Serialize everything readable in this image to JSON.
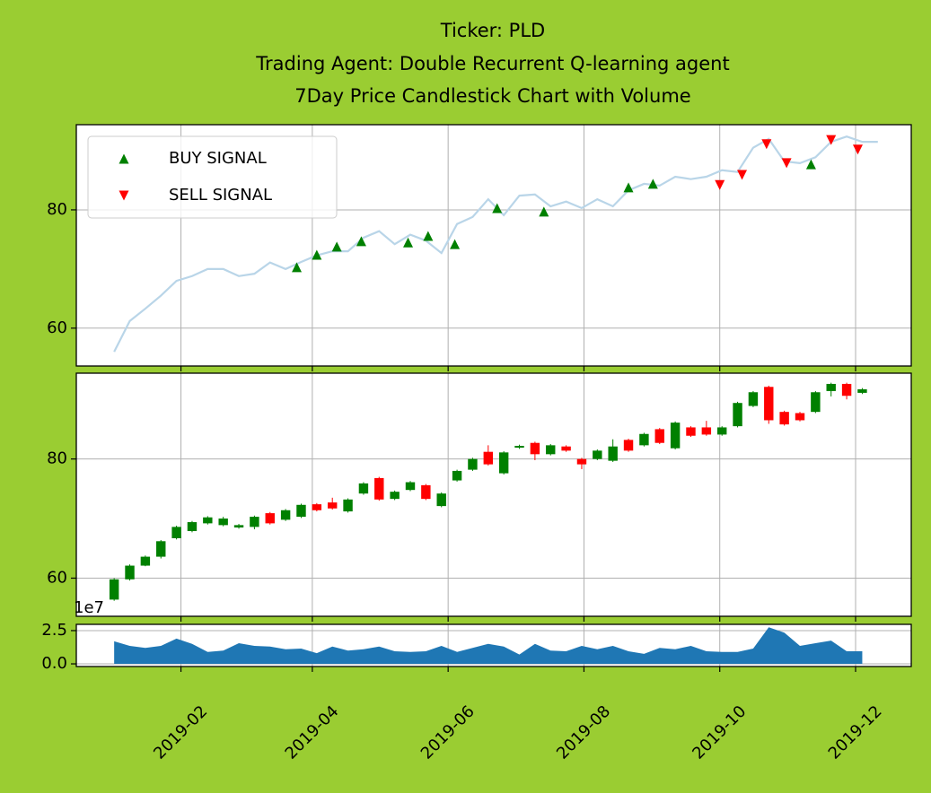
{
  "chart_data": [
    {
      "type": "line",
      "title": [
        "Ticker: PLD",
        "Trading Agent: Double Recurrent Q-learning agent",
        "7Day Price Candlestick Chart with Volume"
      ],
      "x": [
        "2019-01-02",
        "2019-01-09",
        "2019-01-16",
        "2019-01-23",
        "2019-01-30",
        "2019-02-06",
        "2019-02-13",
        "2019-02-20",
        "2019-02-27",
        "2019-03-06",
        "2019-03-13",
        "2019-03-20",
        "2019-03-27",
        "2019-04-03",
        "2019-04-10",
        "2019-04-17",
        "2019-04-24",
        "2019-05-01",
        "2019-05-08",
        "2019-05-15",
        "2019-05-22",
        "2019-05-29",
        "2019-06-05",
        "2019-06-12",
        "2019-06-19",
        "2019-06-26",
        "2019-07-03",
        "2019-07-10",
        "2019-07-17",
        "2019-07-24",
        "2019-07-31",
        "2019-08-07",
        "2019-08-14",
        "2019-08-21",
        "2019-08-28",
        "2019-09-04",
        "2019-09-11",
        "2019-09-18",
        "2019-09-25",
        "2019-10-02",
        "2019-10-09",
        "2019-10-16",
        "2019-10-23",
        "2019-10-30",
        "2019-11-06",
        "2019-11-13",
        "2019-11-20",
        "2019-11-27",
        "2019-12-04",
        "2019-12-11"
      ],
      "values": [
        56.0,
        61.2,
        63.3,
        65.5,
        68.0,
        68.8,
        70.0,
        70.0,
        68.8,
        69.2,
        71.1,
        70.0,
        71.2,
        72.3,
        73.0,
        73.0,
        75.3,
        76.4,
        74.2,
        75.8,
        74.8,
        72.7,
        77.6,
        78.8,
        81.8,
        79.1,
        82.4,
        82.6,
        80.6,
        81.4,
        80.3,
        81.8,
        80.6,
        83.3,
        84.4,
        84.1,
        85.6,
        85.2,
        85.6,
        86.7,
        86.4,
        90.5,
        92.0,
        88.2,
        87.9,
        88.9,
        91.5,
        92.4,
        91.5,
        91.5
      ],
      "color": "#b9d5e8",
      "signals": [
        {
          "name": "BUY SIGNAL",
          "color": "green",
          "marker": "up",
          "x": [
            "2019-03-25",
            "2019-04-03",
            "2019-04-12",
            "2019-04-23",
            "2019-05-14",
            "2019-05-23",
            "2019-06-04",
            "2019-06-23",
            "2019-07-14",
            "2019-08-21",
            "2019-09-01",
            "2019-11-11"
          ],
          "values": [
            70.3,
            72.4,
            73.8,
            74.7,
            74.5,
            75.6,
            74.2,
            80.3,
            79.7,
            83.8,
            84.4,
            87.7
          ]
        },
        {
          "name": "SELL SIGNAL",
          "color": "red",
          "marker": "down",
          "x": [
            "2019-10-01",
            "2019-10-11",
            "2019-10-22",
            "2019-10-31",
            "2019-11-20",
            "2019-12-02"
          ],
          "values": [
            84.2,
            85.9,
            91.1,
            87.9,
            91.8,
            90.2
          ]
        }
      ],
      "legend": "upper left",
      "xlim": [
        "2018-12-16",
        "2019-12-26"
      ],
      "xticks": [
        {
          "value": "2019-02-01",
          "label": "2019-02"
        },
        {
          "value": "2019-04-01",
          "label": "2019-04"
        },
        {
          "value": "2019-06-01",
          "label": "2019-06"
        },
        {
          "value": "2019-08-01",
          "label": "2019-08"
        },
        {
          "value": "2019-10-01",
          "label": "2019-10"
        },
        {
          "value": "2019-12-01",
          "label": "2019-12"
        }
      ],
      "ylim": [
        53.6,
        94.4
      ],
      "yticks": [
        60,
        80
      ],
      "grid": true
    },
    {
      "type": "candlestick",
      "x": [
        "2019-01-02",
        "2019-01-09",
        "2019-01-16",
        "2019-01-23",
        "2019-01-30",
        "2019-02-06",
        "2019-02-13",
        "2019-02-20",
        "2019-02-27",
        "2019-03-06",
        "2019-03-13",
        "2019-03-20",
        "2019-03-27",
        "2019-04-03",
        "2019-04-10",
        "2019-04-17",
        "2019-04-24",
        "2019-05-01",
        "2019-05-08",
        "2019-05-15",
        "2019-05-22",
        "2019-05-29",
        "2019-06-05",
        "2019-06-12",
        "2019-06-19",
        "2019-06-26",
        "2019-07-03",
        "2019-07-10",
        "2019-07-17",
        "2019-07-24",
        "2019-07-31",
        "2019-08-07",
        "2019-08-14",
        "2019-08-21",
        "2019-08-28",
        "2019-09-04",
        "2019-09-11",
        "2019-09-18",
        "2019-09-25",
        "2019-10-02",
        "2019-10-09",
        "2019-10-16",
        "2019-10-23",
        "2019-10-30",
        "2019-11-06",
        "2019-11-13",
        "2019-11-20",
        "2019-11-27",
        "2019-12-04"
      ],
      "open": [
        56.4,
        59.8,
        62.1,
        63.6,
        66.7,
        67.9,
        69.2,
        68.9,
        68.5,
        68.6,
        70.9,
        69.8,
        70.3,
        72.4,
        72.7,
        71.2,
        74.2,
        76.8,
        73.3,
        74.8,
        75.6,
        72.1,
        76.4,
        78.2,
        81.2,
        77.6,
        81.9,
        82.7,
        80.8,
        82.1,
        80.0,
        80.0,
        79.7,
        83.2,
        82.3,
        85.0,
        81.8,
        85.3,
        85.3,
        84.1,
        85.5,
        88.9,
        92.1,
        87.9,
        87.7,
        87.9,
        91.4,
        92.6,
        91.1
      ],
      "high": [
        60.0,
        62.3,
        63.8,
        66.4,
        68.8,
        69.6,
        70.4,
        70.3,
        69.1,
        70.5,
        71.1,
        71.6,
        72.5,
        72.6,
        73.5,
        73.4,
        76.1,
        77.0,
        74.7,
        76.3,
        75.8,
        74.4,
        78.2,
        80.2,
        82.3,
        81.3,
        82.4,
        82.9,
        82.5,
        82.3,
        80.2,
        81.6,
        83.3,
        83.4,
        84.4,
        85.2,
        86.3,
        85.5,
        86.4,
        85.5,
        89.6,
        91.4,
        92.3,
        88.1,
        87.9,
        91.4,
        92.8,
        92.8,
        91.9
      ],
      "low": [
        56.2,
        59.6,
        62.0,
        63.3,
        66.5,
        67.7,
        69.0,
        68.7,
        68.3,
        68.2,
        69.0,
        69.6,
        70.1,
        71.2,
        71.5,
        71.0,
        74.0,
        73.0,
        73.1,
        74.6,
        73.1,
        71.9,
        76.2,
        78.0,
        78.9,
        77.4,
        81.7,
        79.8,
        80.6,
        81.2,
        78.3,
        79.8,
        79.5,
        81.2,
        82.1,
        82.5,
        81.6,
        83.7,
        83.9,
        83.9,
        85.3,
        88.7,
        85.9,
        85.6,
        86.3,
        87.7,
        90.5,
        90.0,
        90.9
      ],
      "close": [
        59.8,
        62.1,
        63.6,
        66.2,
        68.6,
        69.4,
        70.2,
        70.0,
        68.9,
        70.3,
        69.2,
        71.4,
        72.3,
        71.4,
        71.7,
        73.2,
        75.9,
        73.2,
        74.5,
        76.1,
        73.3,
        74.2,
        78.0,
        80.0,
        79.1,
        81.1,
        82.2,
        80.8,
        82.3,
        81.4,
        79.1,
        81.4,
        82.1,
        81.4,
        84.2,
        82.7,
        86.1,
        83.9,
        84.1,
        85.3,
        89.4,
        91.2,
        86.5,
        85.8,
        86.5,
        91.2,
        92.6,
        90.6,
        91.7
      ],
      "up_color": "green",
      "down_color": "red",
      "xlim": [
        "2018-12-16",
        "2019-12-26"
      ],
      "xticks": [
        {
          "value": "2019-02-01",
          "label": "2019-02"
        },
        {
          "value": "2019-04-01",
          "label": "2019-04"
        },
        {
          "value": "2019-06-01",
          "label": "2019-06"
        },
        {
          "value": "2019-08-01",
          "label": "2019-08"
        },
        {
          "value": "2019-10-01",
          "label": "2019-10"
        },
        {
          "value": "2019-12-01",
          "label": "2019-12"
        }
      ],
      "ylim": [
        53.6,
        94.4
      ],
      "yticks": [
        60,
        80
      ],
      "grid": true
    },
    {
      "type": "area",
      "x": [
        "2019-01-02",
        "2019-01-09",
        "2019-01-16",
        "2019-01-23",
        "2019-01-30",
        "2019-02-06",
        "2019-02-13",
        "2019-02-20",
        "2019-02-27",
        "2019-03-06",
        "2019-03-13",
        "2019-03-20",
        "2019-03-27",
        "2019-04-03",
        "2019-04-10",
        "2019-04-17",
        "2019-04-24",
        "2019-05-01",
        "2019-05-08",
        "2019-05-15",
        "2019-05-22",
        "2019-05-29",
        "2019-06-05",
        "2019-06-12",
        "2019-06-19",
        "2019-06-26",
        "2019-07-03",
        "2019-07-10",
        "2019-07-17",
        "2019-07-24",
        "2019-07-31",
        "2019-08-07",
        "2019-08-14",
        "2019-08-21",
        "2019-08-28",
        "2019-09-04",
        "2019-09-11",
        "2019-09-18",
        "2019-09-25",
        "2019-10-02",
        "2019-10-09",
        "2019-10-16",
        "2019-10-23",
        "2019-10-30",
        "2019-11-06",
        "2019-11-13",
        "2019-11-20",
        "2019-11-27",
        "2019-12-04"
      ],
      "values": [
        1.7,
        1.35,
        1.2,
        1.35,
        1.9,
        1.5,
        0.9,
        1.0,
        1.55,
        1.35,
        1.3,
        1.1,
        1.15,
        0.8,
        1.3,
        1.0,
        1.1,
        1.3,
        0.95,
        0.9,
        0.95,
        1.35,
        0.9,
        1.2,
        1.5,
        1.3,
        0.7,
        1.5,
        1.0,
        0.95,
        1.35,
        1.1,
        1.35,
        0.95,
        0.75,
        1.2,
        1.1,
        1.35,
        0.95,
        0.9,
        0.9,
        1.15,
        2.75,
        2.35,
        1.35,
        1.55,
        1.75,
        0.95,
        0.95
      ],
      "color": "#1f77b4",
      "offset_label": "1e7",
      "xlim": [
        "2018-12-16",
        "2019-12-26"
      ],
      "xticks": [
        {
          "value": "2019-02-01",
          "label": "2019-02"
        },
        {
          "value": "2019-04-01",
          "label": "2019-04"
        },
        {
          "value": "2019-06-01",
          "label": "2019-06"
        },
        {
          "value": "2019-08-01",
          "label": "2019-08"
        },
        {
          "value": "2019-10-01",
          "label": "2019-10"
        },
        {
          "value": "2019-12-01",
          "label": "2019-12"
        }
      ],
      "ylim": [
        -0.2,
        2.97
      ],
      "yticks": [
        {
          "value": 0,
          "label": "0.0"
        },
        {
          "value": 2.5,
          "label": "2.5"
        }
      ],
      "grid": true
    }
  ]
}
